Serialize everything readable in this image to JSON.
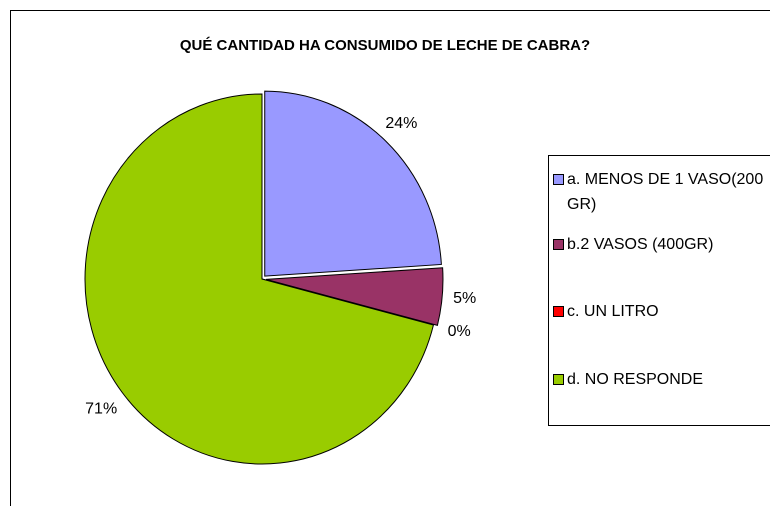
{
  "chart_data": {
    "type": "pie",
    "title": "QUÉ CANTIDAD HA CONSUMIDO DE LECHE DE CABRA?",
    "categories": [
      "a. MENOS DE 1 VASO(200 GR)",
      "b.2 VASOS (400GR)",
      "c. UN LITRO",
      "d. NO RESPONDE"
    ],
    "values": [
      24,
      5,
      0,
      71
    ],
    "value_labels": [
      "24%",
      "5%",
      "0%",
      "71%"
    ],
    "colors": [
      "#9999ff",
      "#993366",
      "#ff0000",
      "#99cc00"
    ],
    "legend": "right"
  }
}
